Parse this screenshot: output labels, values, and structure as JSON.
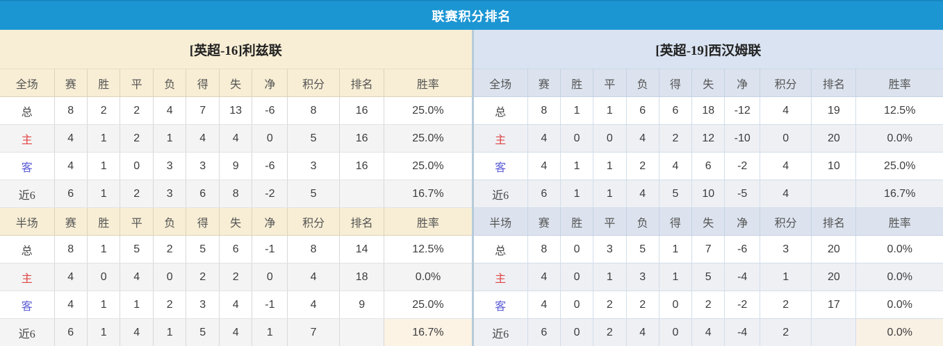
{
  "title": "联赛积分排名",
  "colors": {
    "header_bar": "#1c96d3",
    "left_panel": "#f8eed5",
    "right_panel": "#d9e3f1",
    "points_red": "#ef4536",
    "rank_blue": "#4a90d9",
    "home_red": "#e04444",
    "away_blue": "#5a5bd6"
  },
  "tables": [
    {
      "team": "[英超-16]利兹联",
      "sections": [
        {
          "label": "全场",
          "columns": [
            "赛",
            "胜",
            "平",
            "负",
            "得",
            "失",
            "净",
            "积分",
            "排名",
            "胜率"
          ],
          "rows": [
            {
              "label": "总",
              "style": "total",
              "values": [
                "8",
                "2",
                "2",
                "4",
                "7",
                "13",
                "-6",
                "8",
                "16",
                "25.0%"
              ]
            },
            {
              "label": "主",
              "style": "home",
              "values": [
                "4",
                "1",
                "2",
                "1",
                "4",
                "4",
                "0",
                "5",
                "16",
                "25.0%"
              ]
            },
            {
              "label": "客",
              "style": "away",
              "values": [
                "4",
                "1",
                "0",
                "3",
                "3",
                "9",
                "-6",
                "3",
                "16",
                "25.0%"
              ]
            },
            {
              "label": "近6",
              "style": "recent",
              "values": [
                "6",
                "1",
                "2",
                "3",
                "6",
                "8",
                "-2",
                "5",
                "",
                "16.7%"
              ]
            }
          ]
        },
        {
          "label": "半场",
          "columns": [
            "赛",
            "胜",
            "平",
            "负",
            "得",
            "失",
            "净",
            "积分",
            "排名",
            "胜率"
          ],
          "rows": [
            {
              "label": "总",
              "style": "total",
              "values": [
                "8",
                "1",
                "5",
                "2",
                "5",
                "6",
                "-1",
                "8",
                "14",
                "12.5%"
              ]
            },
            {
              "label": "主",
              "style": "home",
              "values": [
                "4",
                "0",
                "4",
                "0",
                "2",
                "2",
                "0",
                "4",
                "18",
                "0.0%"
              ]
            },
            {
              "label": "客",
              "style": "away",
              "values": [
                "4",
                "1",
                "1",
                "2",
                "3",
                "4",
                "-1",
                "4",
                "9",
                "25.0%"
              ]
            },
            {
              "label": "近6",
              "style": "recent",
              "values": [
                "6",
                "1",
                "4",
                "1",
                "5",
                "4",
                "1",
                "7",
                "",
                "16.7%"
              ]
            }
          ]
        }
      ]
    },
    {
      "team": "[英超-19]西汉姆联",
      "sections": [
        {
          "label": "全场",
          "columns": [
            "赛",
            "胜",
            "平",
            "负",
            "得",
            "失",
            "净",
            "积分",
            "排名",
            "胜率"
          ],
          "rows": [
            {
              "label": "总",
              "style": "total",
              "values": [
                "8",
                "1",
                "1",
                "6",
                "6",
                "18",
                "-12",
                "4",
                "19",
                "12.5%"
              ]
            },
            {
              "label": "主",
              "style": "home",
              "values": [
                "4",
                "0",
                "0",
                "4",
                "2",
                "12",
                "-10",
                "0",
                "20",
                "0.0%"
              ]
            },
            {
              "label": "客",
              "style": "away",
              "values": [
                "4",
                "1",
                "1",
                "2",
                "4",
                "6",
                "-2",
                "4",
                "10",
                "25.0%"
              ]
            },
            {
              "label": "近6",
              "style": "recent",
              "values": [
                "6",
                "1",
                "1",
                "4",
                "5",
                "10",
                "-5",
                "4",
                "",
                "16.7%"
              ]
            }
          ]
        },
        {
          "label": "半场",
          "columns": [
            "赛",
            "胜",
            "平",
            "负",
            "得",
            "失",
            "净",
            "积分",
            "排名",
            "胜率"
          ],
          "rows": [
            {
              "label": "总",
              "style": "total",
              "values": [
                "8",
                "0",
                "3",
                "5",
                "1",
                "7",
                "-6",
                "3",
                "20",
                "0.0%"
              ]
            },
            {
              "label": "主",
              "style": "home",
              "values": [
                "4",
                "0",
                "1",
                "3",
                "1",
                "5",
                "-4",
                "1",
                "20",
                "0.0%"
              ]
            },
            {
              "label": "客",
              "style": "away",
              "values": [
                "4",
                "0",
                "2",
                "2",
                "0",
                "2",
                "-2",
                "2",
                "17",
                "0.0%"
              ]
            },
            {
              "label": "近6",
              "style": "recent",
              "values": [
                "6",
                "0",
                "2",
                "4",
                "0",
                "4",
                "-4",
                "2",
                "",
                "0.0%"
              ]
            }
          ]
        }
      ]
    }
  ]
}
